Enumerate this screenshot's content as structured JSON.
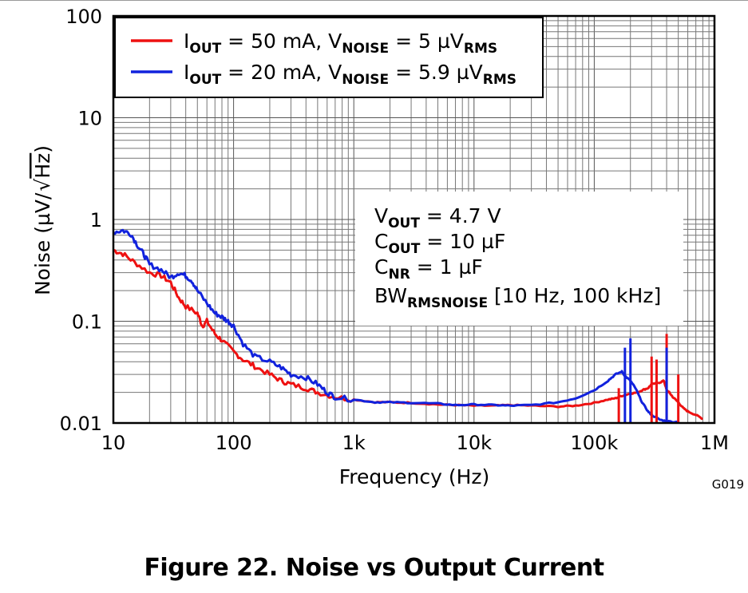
{
  "caption": "Figure 22. Noise vs Output Current",
  "graph_id": "G019",
  "conditions": {
    "vout": {
      "main": "V",
      "sub": "OUT",
      "rest": " = 4.7 V"
    },
    "cout": {
      "main": "C",
      "sub": "OUT",
      "rest": " = 10 µF"
    },
    "cnr": {
      "main": "C",
      "sub": "NR",
      "rest": " = 1 µF"
    },
    "bw": {
      "main": "BW",
      "sub": "RMSNOISE",
      "rest": " [10 Hz, 100 kHz]"
    }
  },
  "legend": [
    {
      "i_main": "I",
      "i_sub": "OUT",
      "i_rest": " = 50 mA, V",
      "v_sub": "NOISE",
      "v_rest": " = 5 µV",
      "r_sub": "RMS",
      "color": "#ee1111"
    },
    {
      "i_main": "I",
      "i_sub": "OUT",
      "i_rest": " = 20 mA, V",
      "v_sub": "NOISE",
      "v_rest": " = 5.9 µV",
      "r_sub": "RMS",
      "color": "#1122dd"
    }
  ],
  "chart_data": {
    "type": "line",
    "xlabel": "Frequency (Hz)",
    "ylabel_prefix": "Noise (µV/",
    "ylabel_root": "Hz",
    "ylabel_suffix": ")",
    "xscale": "log",
    "yscale": "log",
    "xlim": [
      10,
      1000000
    ],
    "ylim": [
      0.01,
      100
    ],
    "xticks": [
      10,
      100,
      1000,
      10000,
      100000,
      1000000
    ],
    "xticklabels": [
      "10",
      "100",
      "1k",
      "10k",
      "100k",
      "1M"
    ],
    "yticks": [
      0.01,
      0.1,
      1,
      10,
      100
    ],
    "yticklabels": [
      "0.01",
      "0.1",
      "1",
      "10",
      "100"
    ],
    "grid": true,
    "legend_position": "top-left",
    "series": [
      {
        "name": "IOUT = 50 mA, VNOISE = 5 µVRMS",
        "color": "#ee1111",
        "x": [
          10,
          12,
          15,
          20,
          25,
          30,
          35,
          40,
          50,
          55,
          60,
          70,
          80,
          100,
          120,
          150,
          200,
          250,
          300,
          400,
          500,
          700,
          1000,
          1500,
          2000,
          3000,
          5000,
          7000,
          10000,
          15000,
          20000,
          30000,
          50000,
          70000,
          100000,
          130000,
          150000,
          170000,
          200000,
          230000,
          250000,
          280000,
          300000,
          350000,
          380000,
          400000,
          420000,
          450000,
          500000,
          550000,
          600000,
          700000,
          800000
        ],
        "y": [
          0.5,
          0.46,
          0.38,
          0.3,
          0.28,
          0.24,
          0.17,
          0.14,
          0.12,
          0.09,
          0.1,
          0.075,
          0.065,
          0.05,
          0.042,
          0.036,
          0.03,
          0.026,
          0.024,
          0.022,
          0.02,
          0.018,
          0.017,
          0.016,
          0.016,
          0.0158,
          0.0152,
          0.015,
          0.0148,
          0.0148,
          0.015,
          0.0148,
          0.0145,
          0.0148,
          0.0158,
          0.017,
          0.0175,
          0.0185,
          0.0195,
          0.02,
          0.021,
          0.022,
          0.024,
          0.025,
          0.026,
          0.021,
          0.02,
          0.018,
          0.016,
          0.014,
          0.013,
          0.012,
          0.011
        ]
      },
      {
        "name": "IOUT = 20 mA, VNOISE = 5.9 µVRMS",
        "color": "#1122dd",
        "x": [
          10,
          12,
          14,
          16,
          18,
          20,
          25,
          30,
          35,
          40,
          45,
          50,
          60,
          70,
          80,
          90,
          100,
          120,
          150,
          200,
          250,
          300,
          400,
          500,
          600,
          700,
          1000,
          1500,
          2000,
          3000,
          5000,
          7000,
          10000,
          15000,
          20000,
          30000,
          50000,
          70000,
          100000,
          130000,
          150000,
          170000,
          180000,
          200000,
          220000,
          250000,
          280000,
          300000,
          350000,
          400000,
          500000
        ],
        "y": [
          0.75,
          0.78,
          0.72,
          0.55,
          0.45,
          0.36,
          0.32,
          0.27,
          0.3,
          0.28,
          0.25,
          0.2,
          0.15,
          0.12,
          0.11,
          0.1,
          0.09,
          0.06,
          0.045,
          0.04,
          0.035,
          0.03,
          0.028,
          0.024,
          0.02,
          0.018,
          0.017,
          0.016,
          0.016,
          0.0158,
          0.0155,
          0.015,
          0.0152,
          0.015,
          0.0148,
          0.015,
          0.016,
          0.0175,
          0.021,
          0.026,
          0.03,
          0.032,
          0.029,
          0.026,
          0.022,
          0.016,
          0.013,
          0.012,
          0.0108,
          0.0104,
          0.0102
        ]
      }
    ],
    "spikes": [
      {
        "series": 1,
        "x": 180000,
        "y": 0.055
      },
      {
        "series": 1,
        "x": 200000,
        "y": 0.068
      },
      {
        "series": 0,
        "x": 160000,
        "y": 0.022
      },
      {
        "series": 0,
        "x": 300000,
        "y": 0.045
      },
      {
        "series": 0,
        "x": 330000,
        "y": 0.042
      },
      {
        "series": 0,
        "x": 400000,
        "y": 0.075
      },
      {
        "series": 0,
        "x": 500000,
        "y": 0.03
      },
      {
        "series": 1,
        "x": 400000,
        "y": 0.055
      }
    ]
  }
}
